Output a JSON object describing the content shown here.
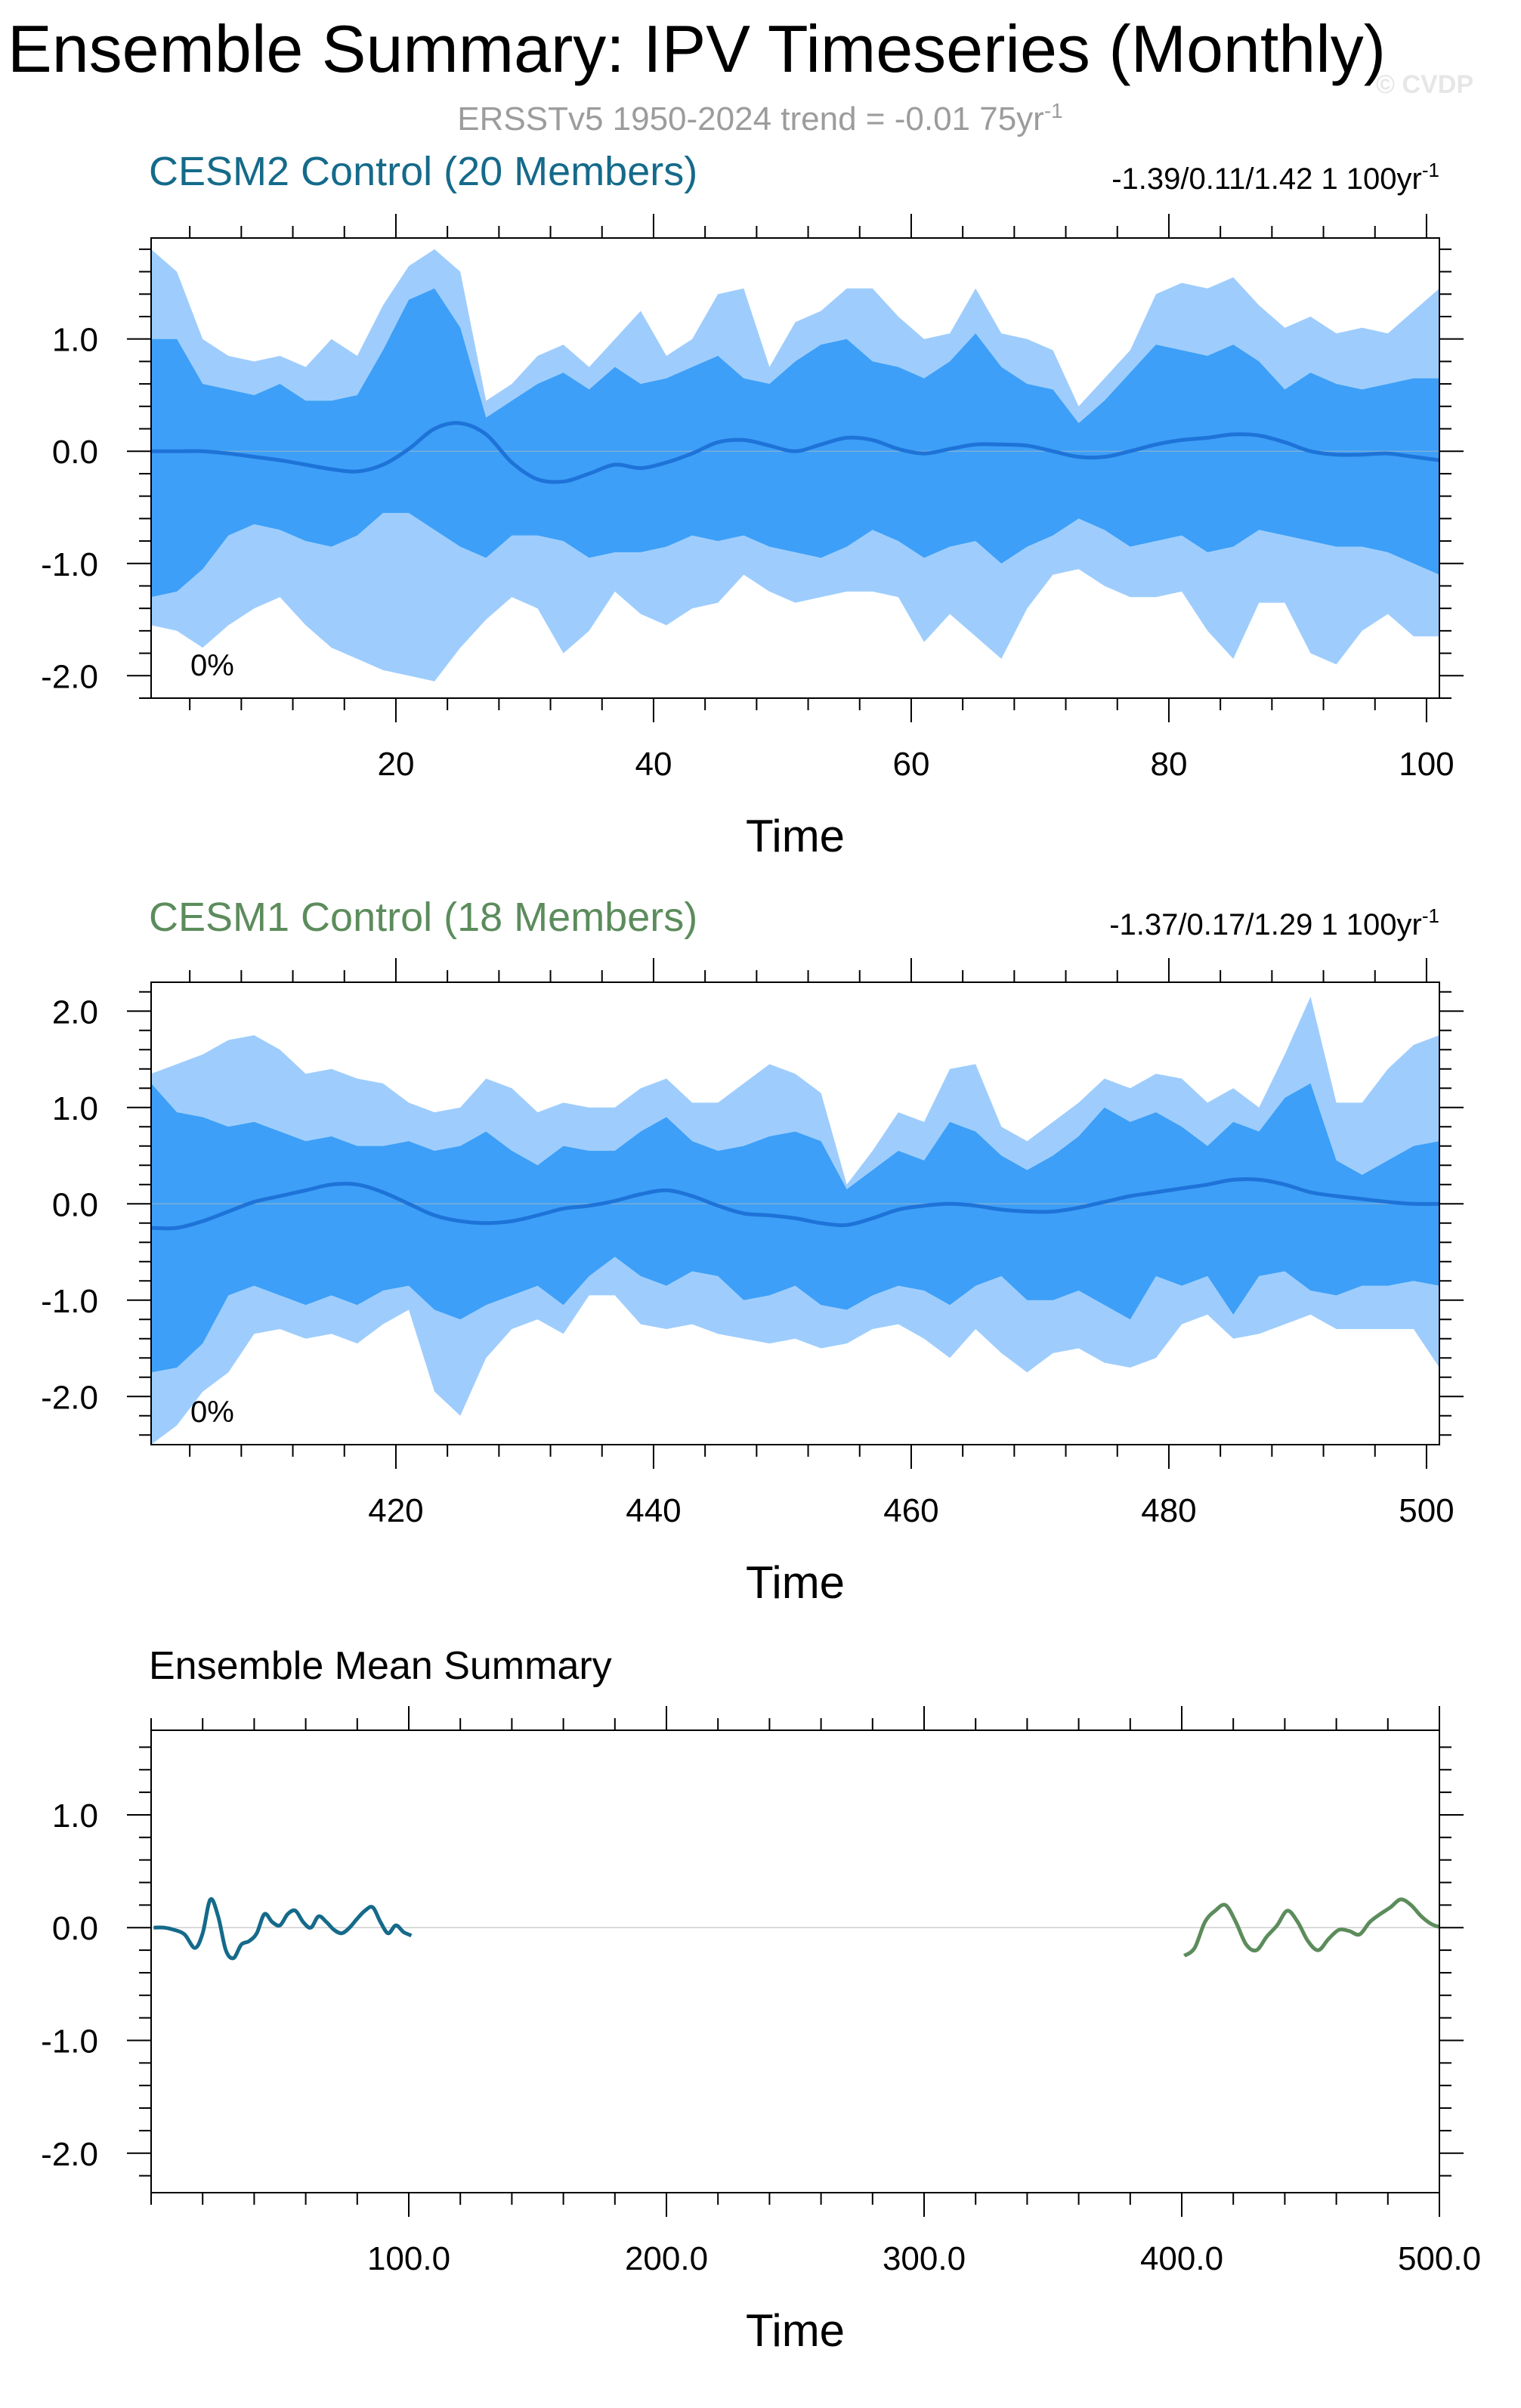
{
  "page": {
    "title": "Ensemble Summary: IPV Timeseries (Monthly)",
    "subtitle": "ERSSTv5 1950-2024 trend = -0.01 75yr",
    "subtitle_sup": "-1",
    "watermark": "© CVDP"
  },
  "colors": {
    "outer_band": "#9ecdfd",
    "inner_band": "#3d9ff7",
    "mean_line": "#1e73d8",
    "cesm2": "#156a8a",
    "cesm1": "#5c8c5c",
    "subtitle": "#9c9c9c"
  },
  "chart_data": [
    {
      "type": "area",
      "title": "CESM2 Control (20 Members)",
      "stats": "-1.39/0.11/1.42 1 100yr",
      "stats_sup": "-1",
      "annotation": "0%",
      "xlabel": "Time",
      "xlim": [
        1,
        101
      ],
      "ylim": [
        -2.2,
        1.9
      ],
      "xticks": [
        20,
        40,
        60,
        80,
        100
      ],
      "xticklabels": [
        "20",
        "40",
        "60",
        "80",
        "100"
      ],
      "yticks": [
        -2.0,
        -1.0,
        0.0,
        1.0
      ],
      "yticklabels": [
        "-2.0",
        "-1.0",
        "0.0",
        "1.0"
      ],
      "series": {
        "x": [
          1,
          3,
          5,
          7,
          9,
          11,
          13,
          15,
          17,
          19,
          21,
          23,
          25,
          27,
          29,
          31,
          33,
          35,
          37,
          39,
          41,
          43,
          45,
          47,
          49,
          51,
          53,
          55,
          57,
          59,
          61,
          63,
          65,
          67,
          69,
          71,
          73,
          75,
          77,
          79,
          81,
          83,
          85,
          87,
          89,
          91,
          93,
          95,
          97,
          99,
          101
        ],
        "max": [
          1.8,
          1.6,
          1.0,
          0.85,
          0.8,
          0.85,
          0.75,
          1.0,
          0.85,
          1.3,
          1.65,
          1.8,
          1.6,
          0.45,
          0.6,
          0.85,
          0.95,
          0.75,
          1.0,
          1.25,
          0.85,
          1.0,
          1.4,
          1.45,
          0.75,
          1.15,
          1.25,
          1.45,
          1.45,
          1.2,
          1.0,
          1.05,
          1.45,
          1.05,
          1.0,
          0.9,
          0.4,
          0.65,
          0.9,
          1.4,
          1.5,
          1.45,
          1.55,
          1.3,
          1.1,
          1.2,
          1.05,
          1.1,
          1.05,
          1.25,
          1.45
        ],
        "p75": [
          1.0,
          1.0,
          0.6,
          0.55,
          0.5,
          0.6,
          0.45,
          0.45,
          0.5,
          0.9,
          1.35,
          1.45,
          1.1,
          0.3,
          0.45,
          0.6,
          0.7,
          0.55,
          0.75,
          0.6,
          0.65,
          0.75,
          0.85,
          0.65,
          0.6,
          0.8,
          0.95,
          1.0,
          0.8,
          0.75,
          0.65,
          0.8,
          1.05,
          0.75,
          0.6,
          0.55,
          0.25,
          0.45,
          0.7,
          0.95,
          0.9,
          0.85,
          0.95,
          0.8,
          0.55,
          0.7,
          0.6,
          0.55,
          0.6,
          0.65,
          0.65
        ],
        "mean": [
          0.0,
          0.0,
          0.0,
          -0.02,
          -0.05,
          -0.08,
          -0.12,
          -0.16,
          -0.18,
          -0.12,
          0.02,
          0.2,
          0.25,
          0.15,
          -0.1,
          -0.25,
          -0.27,
          -0.2,
          -0.12,
          -0.15,
          -0.1,
          -0.02,
          0.08,
          0.1,
          0.05,
          0.0,
          0.06,
          0.12,
          0.1,
          0.02,
          -0.02,
          0.02,
          0.06,
          0.06,
          0.05,
          0.0,
          -0.05,
          -0.05,
          0.0,
          0.06,
          0.1,
          0.12,
          0.15,
          0.14,
          0.08,
          0.0,
          -0.03,
          -0.03,
          -0.02,
          -0.05,
          -0.08
        ],
        "p25": [
          -1.3,
          -1.25,
          -1.05,
          -0.75,
          -0.65,
          -0.7,
          -0.8,
          -0.85,
          -0.75,
          -0.55,
          -0.55,
          -0.7,
          -0.85,
          -0.95,
          -0.75,
          -0.75,
          -0.8,
          -0.95,
          -0.9,
          -0.9,
          -0.85,
          -0.75,
          -0.8,
          -0.75,
          -0.85,
          -0.9,
          -0.95,
          -0.85,
          -0.7,
          -0.8,
          -0.95,
          -0.85,
          -0.8,
          -1.0,
          -0.85,
          -0.75,
          -0.6,
          -0.7,
          -0.85,
          -0.8,
          -0.75,
          -0.9,
          -0.85,
          -0.7,
          -0.75,
          -0.8,
          -0.85,
          -0.85,
          -0.9,
          -1.0,
          -1.1
        ],
        "min": [
          -1.55,
          -1.6,
          -1.75,
          -1.55,
          -1.4,
          -1.3,
          -1.55,
          -1.75,
          -1.85,
          -1.95,
          -2.0,
          -2.05,
          -1.75,
          -1.5,
          -1.3,
          -1.4,
          -1.8,
          -1.6,
          -1.25,
          -1.45,
          -1.55,
          -1.4,
          -1.35,
          -1.1,
          -1.25,
          -1.35,
          -1.3,
          -1.25,
          -1.25,
          -1.3,
          -1.7,
          -1.45,
          -1.65,
          -1.85,
          -1.4,
          -1.1,
          -1.05,
          -1.2,
          -1.3,
          -1.3,
          -1.25,
          -1.6,
          -1.85,
          -1.35,
          -1.35,
          -1.8,
          -1.9,
          -1.6,
          -1.45,
          -1.65,
          -1.65
        ]
      }
    },
    {
      "type": "area",
      "title": "CESM1 Control (18 Members)",
      "stats": "-1.37/0.17/1.29 1 100yr",
      "stats_sup": "-1",
      "annotation": "0%",
      "xlabel": "Time",
      "xlim": [
        401,
        501
      ],
      "ylim": [
        -2.5,
        2.3
      ],
      "xticks": [
        420,
        440,
        460,
        480,
        500
      ],
      "xticklabels": [
        "420",
        "440",
        "460",
        "480",
        "500"
      ],
      "yticks": [
        -2.0,
        -1.0,
        0.0,
        1.0,
        2.0
      ],
      "yticklabels": [
        "-2.0",
        "-1.0",
        "0.0",
        "1.0",
        "2.0"
      ],
      "series": {
        "x": [
          401,
          403,
          405,
          407,
          409,
          411,
          413,
          415,
          417,
          419,
          421,
          423,
          425,
          427,
          429,
          431,
          433,
          435,
          437,
          439,
          441,
          443,
          445,
          447,
          449,
          451,
          453,
          455,
          457,
          459,
          461,
          463,
          465,
          467,
          469,
          471,
          473,
          475,
          477,
          479,
          481,
          483,
          485,
          487,
          489,
          491,
          493,
          495,
          497,
          499,
          501
        ],
        "max": [
          1.35,
          1.45,
          1.55,
          1.7,
          1.75,
          1.6,
          1.35,
          1.4,
          1.3,
          1.25,
          1.05,
          0.95,
          1.0,
          1.3,
          1.2,
          0.95,
          1.05,
          1.0,
          1.0,
          1.2,
          1.3,
          1.05,
          1.05,
          1.25,
          1.45,
          1.35,
          1.15,
          0.2,
          0.55,
          0.95,
          0.85,
          1.4,
          1.45,
          0.8,
          0.65,
          0.85,
          1.05,
          1.3,
          1.2,
          1.35,
          1.3,
          1.05,
          1.2,
          1.0,
          1.55,
          2.15,
          1.05,
          1.05,
          1.4,
          1.65,
          1.75
        ],
        "p75": [
          1.25,
          0.95,
          0.9,
          0.8,
          0.85,
          0.75,
          0.65,
          0.7,
          0.6,
          0.6,
          0.65,
          0.55,
          0.6,
          0.75,
          0.55,
          0.4,
          0.6,
          0.55,
          0.55,
          0.75,
          0.9,
          0.65,
          0.55,
          0.6,
          0.7,
          0.75,
          0.65,
          0.15,
          0.35,
          0.55,
          0.45,
          0.85,
          0.75,
          0.5,
          0.35,
          0.5,
          0.7,
          1.0,
          0.85,
          0.95,
          0.8,
          0.6,
          0.85,
          0.75,
          1.1,
          1.25,
          0.45,
          0.3,
          0.45,
          0.6,
          0.65
        ],
        "mean": [
          -0.25,
          -0.25,
          -0.18,
          -0.08,
          0.02,
          0.08,
          0.14,
          0.2,
          0.2,
          0.12,
          0.0,
          -0.12,
          -0.18,
          -0.2,
          -0.18,
          -0.12,
          -0.05,
          -0.02,
          0.03,
          0.1,
          0.14,
          0.08,
          -0.02,
          -0.1,
          -0.12,
          -0.15,
          -0.2,
          -0.22,
          -0.15,
          -0.06,
          -0.02,
          0.0,
          -0.02,
          -0.06,
          -0.08,
          -0.08,
          -0.04,
          0.02,
          0.08,
          0.12,
          0.16,
          0.2,
          0.25,
          0.25,
          0.2,
          0.12,
          0.08,
          0.05,
          0.02,
          0.0,
          0.0
        ],
        "p25": [
          -1.75,
          -1.7,
          -1.45,
          -0.95,
          -0.85,
          -0.95,
          -1.05,
          -0.95,
          -1.05,
          -0.9,
          -0.85,
          -1.1,
          -1.2,
          -1.05,
          -0.95,
          -0.85,
          -1.05,
          -0.75,
          -0.55,
          -0.75,
          -0.85,
          -0.7,
          -0.75,
          -1.0,
          -0.95,
          -0.85,
          -1.05,
          -1.1,
          -0.95,
          -0.85,
          -0.9,
          -1.05,
          -0.85,
          -0.75,
          -1.0,
          -1.0,
          -0.9,
          -1.05,
          -1.2,
          -0.75,
          -0.85,
          -0.75,
          -1.15,
          -0.75,
          -0.7,
          -0.9,
          -0.95,
          -0.85,
          -0.85,
          -0.8,
          -0.85
        ],
        "min": [
          -2.5,
          -2.3,
          -1.95,
          -1.75,
          -1.35,
          -1.3,
          -1.4,
          -1.35,
          -1.45,
          -1.25,
          -1.1,
          -1.95,
          -2.2,
          -1.6,
          -1.3,
          -1.2,
          -1.35,
          -0.95,
          -0.95,
          -1.25,
          -1.3,
          -1.25,
          -1.35,
          -1.4,
          -1.45,
          -1.4,
          -1.5,
          -1.45,
          -1.3,
          -1.25,
          -1.4,
          -1.6,
          -1.3,
          -1.55,
          -1.75,
          -1.55,
          -1.5,
          -1.65,
          -1.7,
          -1.6,
          -1.25,
          -1.15,
          -1.4,
          -1.35,
          -1.25,
          -1.15,
          -1.3,
          -1.3,
          -1.3,
          -1.3,
          -1.7
        ]
      }
    },
    {
      "type": "line",
      "title": "Ensemble Mean Summary",
      "xlabel": "Time",
      "xlim": [
        0,
        500
      ],
      "ylim": [
        -2.35,
        1.75
      ],
      "xticks": [
        100,
        200,
        300,
        400,
        500
      ],
      "xticklabels": [
        "100.0",
        "200.0",
        "300.0",
        "400.0",
        "500.0"
      ],
      "yticks": [
        -2.0,
        -1.0,
        0.0,
        1.0
      ],
      "yticklabels": [
        "-2.0",
        "-1.0",
        "0.0",
        "1.0"
      ],
      "series": [
        {
          "color": "#156a8a",
          "x": [
            1,
            5,
            9,
            13,
            17,
            20,
            23,
            26,
            29,
            32,
            35,
            38,
            41,
            44,
            47,
            50,
            53,
            56,
            59,
            62,
            65,
            68,
            71,
            74,
            77,
            80,
            83,
            86,
            89,
            92,
            95,
            98,
            101
          ],
          "y": [
            0.0,
            0.0,
            -0.02,
            -0.06,
            -0.18,
            -0.05,
            0.25,
            0.1,
            -0.2,
            -0.27,
            -0.15,
            -0.12,
            -0.05,
            0.12,
            0.05,
            0.02,
            0.12,
            0.15,
            0.05,
            0.0,
            0.1,
            0.05,
            -0.02,
            -0.05,
            0.0,
            0.08,
            0.15,
            0.18,
            0.05,
            -0.05,
            0.02,
            -0.04,
            -0.07
          ]
        },
        {
          "color": "#5c8c5c",
          "x": [
            401,
            405,
            409,
            413,
            417,
            421,
            425,
            429,
            433,
            437,
            441,
            445,
            449,
            453,
            457,
            461,
            465,
            469,
            473,
            477,
            481,
            485,
            489,
            493,
            497,
            501
          ],
          "y": [
            -0.25,
            -0.18,
            0.05,
            0.15,
            0.2,
            0.05,
            -0.15,
            -0.2,
            -0.08,
            0.02,
            0.15,
            0.05,
            -0.12,
            -0.2,
            -0.1,
            -0.02,
            -0.03,
            -0.06,
            0.05,
            0.12,
            0.18,
            0.25,
            0.2,
            0.1,
            0.03,
            0.0
          ]
        }
      ]
    }
  ]
}
